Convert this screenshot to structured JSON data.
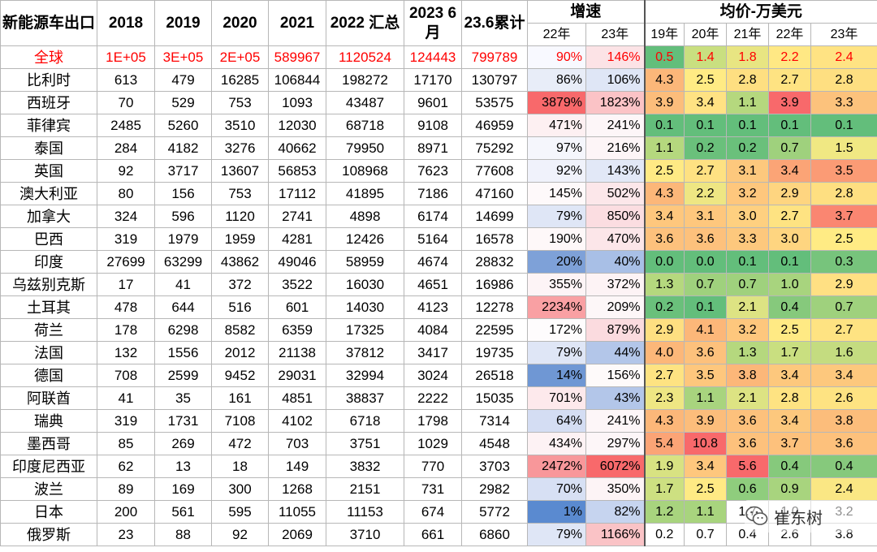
{
  "header": {
    "corner": "新能源车出口",
    "years": [
      "2018",
      "2019",
      "2020",
      "2021",
      "2022 汇总",
      "2023 6月",
      "23.6累计"
    ],
    "growth_group": "增速",
    "growth_sub": [
      "22年",
      "23年"
    ],
    "price_group": "均价-万美元",
    "price_sub": [
      "19年",
      "20年",
      "21年",
      "22年",
      "23年"
    ]
  },
  "rows": [
    {
      "country": "全球",
      "vals": [
        "1E+05",
        "3E+05",
        "2E+05",
        "589967",
        "1120524",
        "124443",
        "799789"
      ],
      "growth": [
        "90%",
        "146%"
      ],
      "prices": [
        "0.5",
        "1.4",
        "1.8",
        "2.2",
        "2.4"
      ]
    },
    {
      "country": "比利时",
      "vals": [
        "613",
        "479",
        "16285",
        "106844",
        "198272",
        "17170",
        "130797"
      ],
      "growth": [
        "86%",
        "106%"
      ],
      "prices": [
        "4.3",
        "2.5",
        "2.8",
        "2.7",
        "2.8"
      ]
    },
    {
      "country": "西班牙",
      "vals": [
        "70",
        "529",
        "753",
        "1093",
        "43487",
        "9601",
        "53575"
      ],
      "growth": [
        "3879%",
        "1823%"
      ],
      "prices": [
        "3.9",
        "3.4",
        "1.1",
        "3.9",
        "3.3"
      ]
    },
    {
      "country": "菲律宾",
      "vals": [
        "2485",
        "5260",
        "3510",
        "12030",
        "68718",
        "9108",
        "46959"
      ],
      "growth": [
        "471%",
        "241%"
      ],
      "prices": [
        "0.1",
        "0.1",
        "0.1",
        "0.1",
        "0.1"
      ]
    },
    {
      "country": "泰国",
      "vals": [
        "284",
        "4182",
        "3276",
        "40662",
        "79950",
        "8971",
        "75292"
      ],
      "growth": [
        "97%",
        "216%"
      ],
      "prices": [
        "1.1",
        "0.2",
        "0.2",
        "0.7",
        "1.5"
      ]
    },
    {
      "country": "英国",
      "vals": [
        "92",
        "3717",
        "13607",
        "56853",
        "108968",
        "7623",
        "77608"
      ],
      "growth": [
        "92%",
        "143%"
      ],
      "prices": [
        "2.5",
        "2.7",
        "3.1",
        "3.4",
        "3.5"
      ]
    },
    {
      "country": "澳大利亚",
      "vals": [
        "80",
        "156",
        "753",
        "17112",
        "41895",
        "7186",
        "47160"
      ],
      "growth": [
        "145%",
        "502%"
      ],
      "prices": [
        "4.3",
        "2.2",
        "3.2",
        "2.9",
        "2.8"
      ]
    },
    {
      "country": "加拿大",
      "vals": [
        "324",
        "596",
        "1120",
        "2741",
        "4898",
        "6174",
        "14699"
      ],
      "growth": [
        "79%",
        "850%"
      ],
      "prices": [
        "3.4",
        "3.1",
        "3.0",
        "2.7",
        "3.7"
      ]
    },
    {
      "country": "巴西",
      "vals": [
        "319",
        "1979",
        "1959",
        "4281",
        "12426",
        "5164",
        "16578"
      ],
      "growth": [
        "190%",
        "470%"
      ],
      "prices": [
        "3.6",
        "3.6",
        "3.3",
        "3.0",
        "2.5"
      ]
    },
    {
      "country": "印度",
      "vals": [
        "27699",
        "63299",
        "43862",
        "49046",
        "58959",
        "4674",
        "28832"
      ],
      "growth": [
        "20%",
        "40%"
      ],
      "prices": [
        "0.0",
        "0.0",
        "0.1",
        "0.1",
        "0.3"
      ]
    },
    {
      "country": "乌兹别克斯",
      "vals": [
        "17",
        "41",
        "372",
        "3522",
        "16030",
        "4651",
        "16986"
      ],
      "growth": [
        "355%",
        "372%"
      ],
      "prices": [
        "1.3",
        "0.7",
        "0.7",
        "1.0",
        "2.9"
      ]
    },
    {
      "country": "土耳其",
      "vals": [
        "478",
        "644",
        "516",
        "601",
        "14030",
        "4123",
        "12278"
      ],
      "growth": [
        "2234%",
        "209%"
      ],
      "prices": [
        "0.2",
        "0.1",
        "2.1",
        "0.4",
        "0.7"
      ]
    },
    {
      "country": "荷兰",
      "vals": [
        "178",
        "6298",
        "8582",
        "6359",
        "17325",
        "4084",
        "22595"
      ],
      "growth": [
        "172%",
        "879%"
      ],
      "prices": [
        "2.9",
        "4.1",
        "3.2",
        "2.5",
        "2.7"
      ]
    },
    {
      "country": "法国",
      "vals": [
        "132",
        "1556",
        "2012",
        "21138",
        "37812",
        "3417",
        "19735"
      ],
      "growth": [
        "79%",
        "44%"
      ],
      "prices": [
        "4.0",
        "3.6",
        "1.3",
        "1.7",
        "1.6"
      ]
    },
    {
      "country": "德国",
      "vals": [
        "708",
        "2599",
        "9452",
        "29031",
        "32994",
        "3024",
        "26518"
      ],
      "growth": [
        "14%",
        "156%"
      ],
      "prices": [
        "2.7",
        "3.5",
        "3.8",
        "3.4",
        "3.4"
      ]
    },
    {
      "country": "阿联酋",
      "vals": [
        "41",
        "35",
        "161",
        "4851",
        "38837",
        "2222",
        "15035"
      ],
      "growth": [
        "701%",
        "43%"
      ],
      "prices": [
        "2.3",
        "1.1",
        "2.1",
        "2.8",
        "2.6"
      ]
    },
    {
      "country": "瑞典",
      "vals": [
        "319",
        "1731",
        "7108",
        "4102",
        "6718",
        "1798",
        "7314"
      ],
      "growth": [
        "64%",
        "241%"
      ],
      "prices": [
        "4.3",
        "3.9",
        "3.6",
        "3.4",
        "3.8"
      ]
    },
    {
      "country": "墨西哥",
      "vals": [
        "85",
        "269",
        "472",
        "703",
        "3751",
        "1029",
        "4548"
      ],
      "growth": [
        "434%",
        "297%"
      ],
      "prices": [
        "5.4",
        "10.8",
        "3.6",
        "3.7",
        "3.6"
      ]
    },
    {
      "country": "印度尼西亚",
      "vals": [
        "62",
        "13",
        "18",
        "149",
        "3832",
        "770",
        "3703"
      ],
      "growth": [
        "2472%",
        "6072%"
      ],
      "prices": [
        "1.9",
        "3.4",
        "5.6",
        "0.4",
        "0.4"
      ]
    },
    {
      "country": "波兰",
      "vals": [
        "89",
        "169",
        "300",
        "1268",
        "2151",
        "731",
        "2982"
      ],
      "growth": [
        "70%",
        "350%"
      ],
      "prices": [
        "1.7",
        "2.5",
        "0.6",
        "0.9",
        "2.4"
      ]
    },
    {
      "country": "日本",
      "vals": [
        "200",
        "561",
        "595",
        "11055",
        "11153",
        "674",
        "5772"
      ],
      "growth": [
        "1%",
        "82%"
      ],
      "prices": [
        "1.2",
        "1.1",
        "1.7",
        "1.0",
        "3.2"
      ]
    },
    {
      "country": "俄罗斯",
      "vals": [
        "23",
        "88",
        "92",
        "2069",
        "3710",
        "661",
        "6860"
      ],
      "growth": [
        "79%",
        "1166%"
      ],
      "prices": [
        "0.2",
        "0.7",
        "0.4",
        "2.6",
        "3.8"
      ]
    }
  ],
  "growth_colors": [
    [
      "#f8f9ff",
      "#fce3e6"
    ],
    [
      "#e8edf8",
      "#dfe6f6"
    ],
    [
      "#f8696b",
      "#fbc3c6"
    ],
    [
      "#fdf0f2",
      "#fdf6f8"
    ],
    [
      "#f5f6fc",
      "#fdf5f7"
    ],
    [
      "#f0f2fb",
      "#e2e8f7"
    ],
    [
      "#fef9fa",
      "#fce7ea"
    ],
    [
      "#dfe6f6",
      "#fbdde1"
    ],
    [
      "#fef8f9",
      "#fce6e9"
    ],
    [
      "#7ea1d8",
      "#a8bfe6"
    ],
    [
      "#fdf4f6",
      "#fdf3f5"
    ],
    [
      "#f9a0a3",
      "#fdf7f8"
    ],
    [
      "#fefcfd",
      "#fbdbdf"
    ],
    [
      "#dfe6f6",
      "#b3c6e9"
    ],
    [
      "#6f97d4",
      "#fefafa"
    ],
    [
      "#fde9ec",
      "#b3c6e9"
    ],
    [
      "#d4ddf3",
      "#fdf6f8"
    ],
    [
      "#fdf2f4",
      "#fdf6f8"
    ],
    [
      "#f8979a",
      "#f8696b"
    ],
    [
      "#d7e0f4",
      "#fdf4f6"
    ],
    [
      "#5a8ad0",
      "#c6d4ef"
    ],
    [
      "#dfe6f6",
      "#fac3c6"
    ]
  ],
  "price_colors": [
    [
      "#63be7b",
      "#c9df80",
      "#e8e582",
      "#ffe884",
      "#ffe383"
    ],
    [
      "#fcb779",
      "#ffeb84",
      "#fedf81",
      "#fee382",
      "#fedf81"
    ],
    [
      "#fcbd7b",
      "#ffe283",
      "#b5d87e",
      "#f8696b",
      "#fcc27c"
    ],
    [
      "#63be7b",
      "#63be7b",
      "#63be7b",
      "#63be7b",
      "#63be7b"
    ],
    [
      "#b5d87e",
      "#6ac07b",
      "#6ac07b",
      "#9fd17d",
      "#f0e883"
    ],
    [
      "#ffea84",
      "#fee182",
      "#fdc87d",
      "#fba476",
      "#fb9b75"
    ],
    [
      "#fcb779",
      "#eee683",
      "#fec77d",
      "#fed580",
      "#fedf81"
    ],
    [
      "#fec77d",
      "#fec77d",
      "#fed080",
      "#fee382",
      "#fa8671"
    ],
    [
      "#fdc17c",
      "#fdc17c",
      "#fdc87d",
      "#fed580",
      "#ffeb84"
    ],
    [
      "#63be7b",
      "#63be7b",
      "#63be7b",
      "#63be7b",
      "#77c47c"
    ],
    [
      "#b5d87e",
      "#9fd17d",
      "#9fd17d",
      "#a8d47e",
      "#ffe083"
    ],
    [
      "#6ac07b",
      "#63be7b",
      "#dde383",
      "#86c97c",
      "#9fd17d"
    ],
    [
      "#fedf81",
      "#fcb779",
      "#fec77d",
      "#ffea84",
      "#fee382"
    ],
    [
      "#fcb779",
      "#fdc17c",
      "#b5d87e",
      "#c9df80",
      "#c4dc80"
    ],
    [
      "#fee382",
      "#fec77d",
      "#fcb779",
      "#fdc87d",
      "#fdc87d"
    ],
    [
      "#eee683",
      "#a8d47e",
      "#dde383",
      "#fee382",
      "#fee382"
    ],
    [
      "#fcb779",
      "#fcbd7b",
      "#fdc17c",
      "#fdc87d",
      "#fcbd7b"
    ],
    [
      "#fba476",
      "#f8696b",
      "#fdc17c",
      "#fdc17c",
      "#fdc17c"
    ],
    [
      "#d8e282",
      "#fec77d",
      "#f8696b",
      "#86c97c",
      "#86c97c"
    ],
    [
      "#cde081",
      "#ffea84",
      "#8fcd7d",
      "#a8d47e",
      "#fae784"
    ],
    [
      "#a8d47e",
      "#a8d47e",
      "#ffffff",
      "#ffffff",
      "#ffffff"
    ],
    [
      "#ffffff",
      "#ffffff",
      "#ffffff",
      "#ffffff",
      "#ffffff"
    ]
  ],
  "watermark": {
    "text": "崔东树",
    "icon": "wechat-icon"
  }
}
